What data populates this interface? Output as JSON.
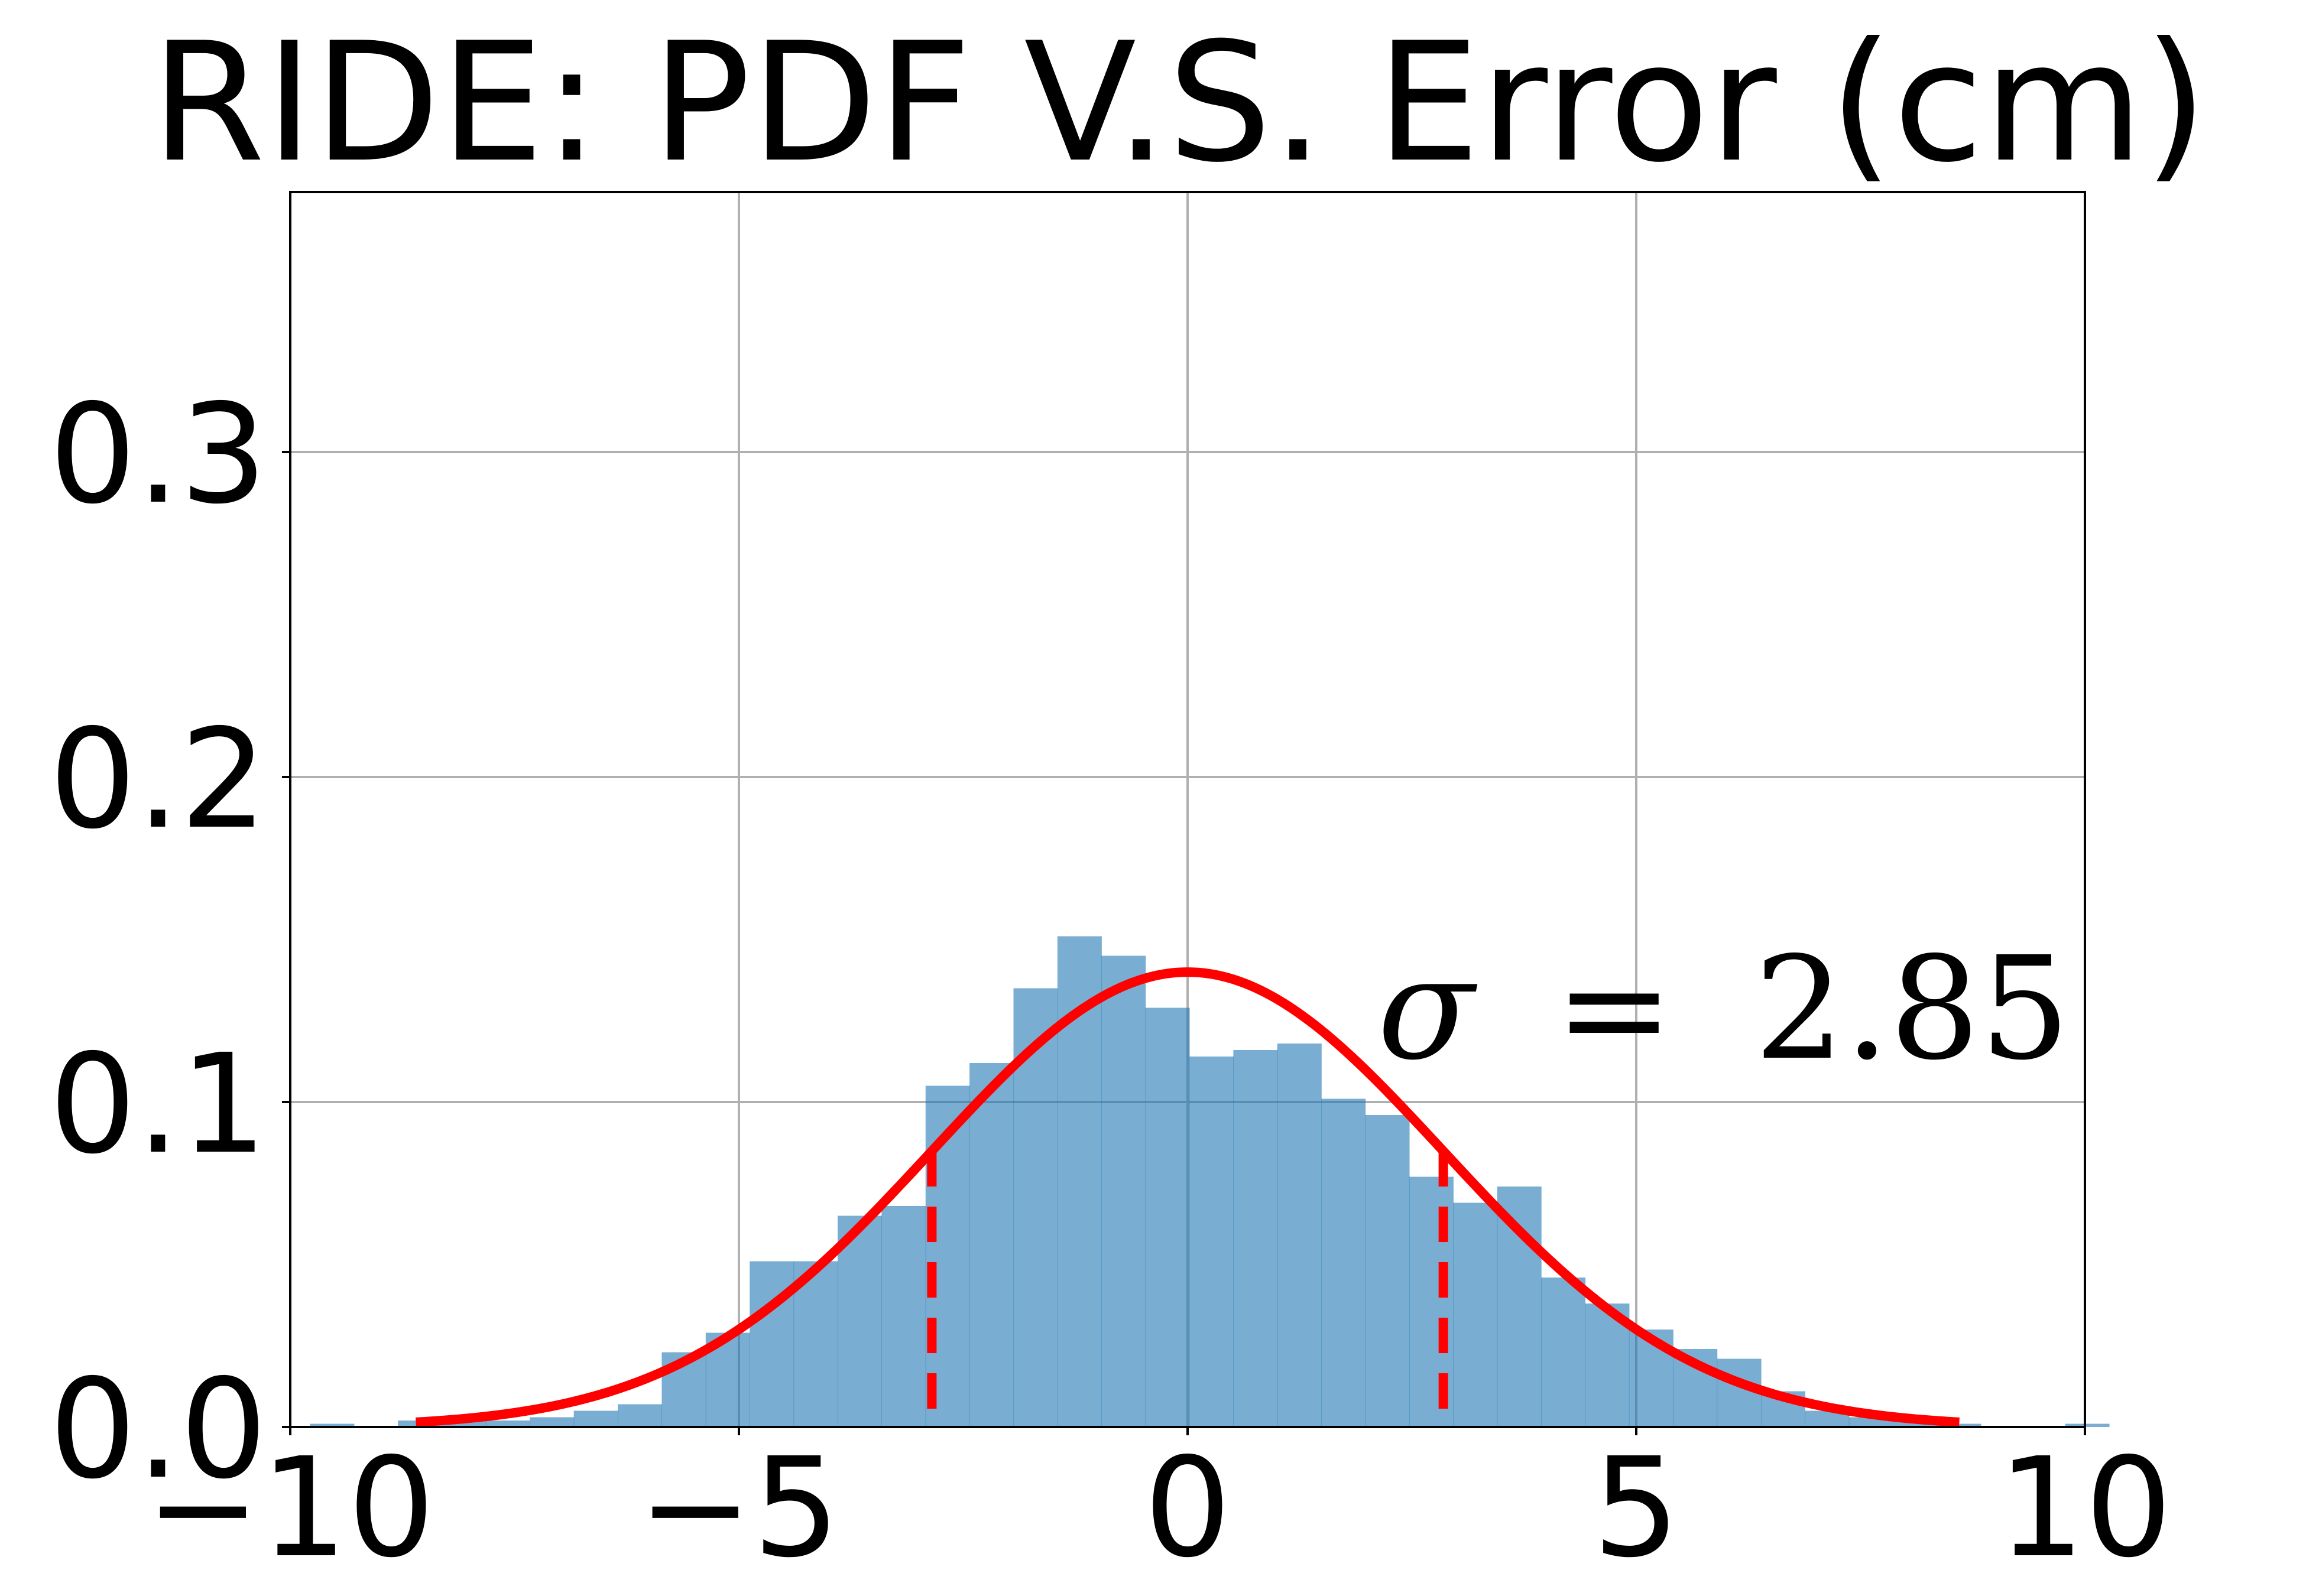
{
  "chart_data": {
    "type": "bar",
    "title": "RIDE: PDF V.S. Error (cm)",
    "xlabel": "",
    "ylabel": "",
    "xlim": [
      -10,
      10
    ],
    "ylim": [
      0,
      0.38
    ],
    "grid": true,
    "x_ticks": [
      {
        "value": -10,
        "label": "−10"
      },
      {
        "value": -5,
        "label": "−5"
      },
      {
        "value": 0,
        "label": "0"
      },
      {
        "value": 5,
        "label": "5"
      },
      {
        "value": 10,
        "label": "10"
      }
    ],
    "y_ticks": [
      {
        "value": 0.0,
        "label": "0.0"
      },
      {
        "value": 0.1,
        "label": "0.1"
      },
      {
        "value": 0.2,
        "label": "0.2"
      },
      {
        "value": 0.3,
        "label": "0.3"
      }
    ],
    "histogram": {
      "bin_width": 0.49,
      "bin_starts": [
        -9.78,
        -8.8,
        -8.31,
        -7.82,
        -7.33,
        -6.84,
        -6.35,
        -5.86,
        -5.37,
        -4.88,
        -4.39,
        -3.9,
        -3.41,
        -2.92,
        -2.43,
        -1.94,
        -1.45,
        -0.96,
        -0.47,
        0.02,
        0.51,
        1.0,
        1.49,
        1.98,
        2.47,
        2.96,
        3.45,
        3.94,
        4.43,
        4.92,
        5.41,
        5.9,
        6.39,
        6.88,
        7.37,
        7.86,
        8.35,
        9.78
      ],
      "densities": [
        0.001,
        0.002,
        0.002,
        0.002,
        0.003,
        0.005,
        0.007,
        0.023,
        0.029,
        0.051,
        0.051,
        0.065,
        0.068,
        0.105,
        0.112,
        0.135,
        0.151,
        0.145,
        0.129,
        0.114,
        0.116,
        0.118,
        0.101,
        0.096,
        0.077,
        0.069,
        0.074,
        0.046,
        0.038,
        0.03,
        0.024,
        0.021,
        0.011,
        0.005,
        0.003,
        0.002,
        0.001,
        0.001
      ]
    },
    "fit": {
      "mean": 0.0,
      "sigma": 2.85,
      "x_range": [
        -8.6,
        8.6
      ],
      "sigma_markers": [
        -2.85,
        2.85
      ]
    },
    "annotation": {
      "symbol": "σ",
      "equals": "=",
      "value": "2.85"
    }
  }
}
